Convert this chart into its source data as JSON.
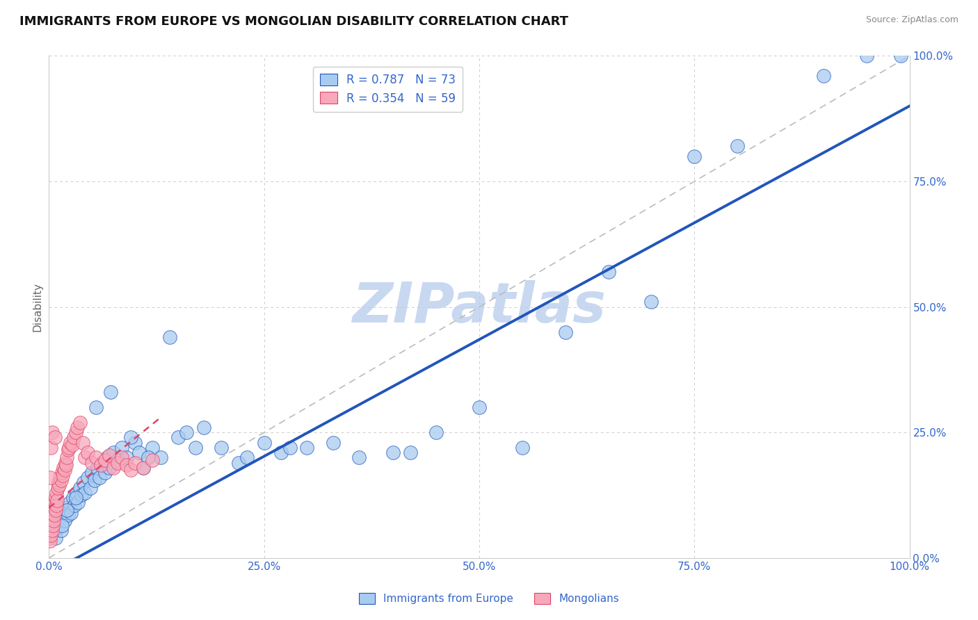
{
  "title": "IMMIGRANTS FROM EUROPE VS MONGOLIAN DISABILITY CORRELATION CHART",
  "source": "Source: ZipAtlas.com",
  "ylabel": "Disability",
  "blue_label": "Immigrants from Europe",
  "pink_label": "Mongolians",
  "blue_R": 0.787,
  "blue_N": 73,
  "pink_R": 0.354,
  "pink_N": 59,
  "blue_color": "#A8CCF0",
  "pink_color": "#F8A8BB",
  "blue_line_color": "#2255BB",
  "pink_line_color": "#DD4466",
  "title_color": "#111111",
  "axis_label_color": "#3366CC",
  "watermark_text": "ZIPatlas",
  "watermark_color": "#C8D8F0",
  "grid_color": "#CCCCCC",
  "background_color": "#FFFFFF",
  "blue_scatter_x": [
    0.4,
    0.6,
    0.8,
    1.0,
    1.2,
    1.4,
    1.6,
    1.8,
    2.0,
    2.2,
    2.4,
    2.6,
    2.8,
    3.0,
    3.2,
    3.4,
    3.6,
    3.8,
    4.0,
    4.2,
    4.5,
    4.8,
    5.0,
    5.3,
    5.6,
    5.9,
    6.2,
    6.5,
    6.8,
    7.0,
    7.5,
    8.0,
    8.5,
    9.0,
    10.0,
    10.5,
    11.0,
    12.0,
    13.0,
    14.0,
    15.0,
    17.0,
    18.0,
    20.0,
    22.0,
    25.0,
    27.0,
    30.0,
    33.0,
    36.0,
    40.0,
    45.0,
    50.0,
    55.0,
    60.0,
    65.0,
    70.0,
    75.0,
    80.0,
    90.0,
    95.0,
    99.0,
    1.5,
    2.1,
    3.1,
    5.5,
    7.2,
    9.5,
    11.5,
    16.0,
    23.0,
    28.0,
    42.0
  ],
  "blue_scatter_y": [
    5.0,
    7.0,
    4.0,
    6.0,
    8.0,
    5.5,
    9.0,
    7.5,
    10.0,
    8.5,
    11.0,
    9.0,
    12.0,
    10.5,
    13.0,
    11.0,
    14.0,
    12.5,
    15.0,
    13.0,
    16.0,
    14.0,
    17.0,
    15.5,
    18.0,
    16.0,
    19.0,
    17.0,
    20.0,
    18.0,
    21.0,
    19.5,
    22.0,
    20.0,
    23.0,
    21.0,
    18.0,
    22.0,
    20.0,
    44.0,
    24.0,
    22.0,
    26.0,
    22.0,
    19.0,
    23.0,
    21.0,
    22.0,
    23.0,
    20.0,
    21.0,
    25.0,
    30.0,
    22.0,
    45.0,
    57.0,
    51.0,
    80.0,
    82.0,
    96.0,
    100.0,
    100.0,
    6.5,
    9.5,
    12.0,
    30.0,
    33.0,
    24.0,
    20.0,
    25.0,
    20.0,
    22.0,
    21.0
  ],
  "pink_scatter_x": [
    0.05,
    0.1,
    0.15,
    0.2,
    0.25,
    0.3,
    0.35,
    0.4,
    0.45,
    0.5,
    0.55,
    0.6,
    0.65,
    0.7,
    0.75,
    0.8,
    0.85,
    0.9,
    0.95,
    1.0,
    1.1,
    1.2,
    1.3,
    1.4,
    1.5,
    1.6,
    1.7,
    1.8,
    1.9,
    2.0,
    2.1,
    2.2,
    2.3,
    2.5,
    2.7,
    2.9,
    3.1,
    3.3,
    3.6,
    3.9,
    4.2,
    4.5,
    5.0,
    5.5,
    6.0,
    6.5,
    7.0,
    7.5,
    8.0,
    8.5,
    9.0,
    9.5,
    10.0,
    11.0,
    12.0,
    0.12,
    0.22,
    0.42,
    0.72
  ],
  "pink_scatter_y": [
    4.0,
    5.0,
    3.5,
    6.0,
    4.5,
    7.0,
    5.5,
    8.0,
    6.5,
    9.0,
    7.5,
    10.0,
    8.5,
    11.0,
    9.5,
    12.0,
    10.5,
    13.0,
    11.5,
    14.0,
    15.0,
    14.5,
    16.0,
    15.5,
    17.0,
    16.5,
    18.0,
    17.5,
    19.0,
    18.5,
    20.0,
    21.5,
    22.0,
    23.0,
    22.5,
    24.0,
    25.0,
    26.0,
    27.0,
    23.0,
    20.0,
    21.0,
    19.0,
    20.0,
    18.5,
    19.5,
    20.5,
    18.0,
    19.0,
    20.0,
    18.5,
    17.5,
    19.0,
    18.0,
    19.5,
    16.0,
    22.0,
    25.0,
    24.0
  ],
  "blue_line_x": [
    0,
    100
  ],
  "blue_line_y": [
    -3,
    90
  ],
  "pink_line_x": [
    0,
    13
  ],
  "pink_line_y": [
    10,
    28
  ],
  "ref_line_x": [
    0,
    100
  ],
  "ref_line_y": [
    0,
    100
  ],
  "xlim": [
    0,
    100
  ],
  "ylim": [
    0,
    100
  ]
}
